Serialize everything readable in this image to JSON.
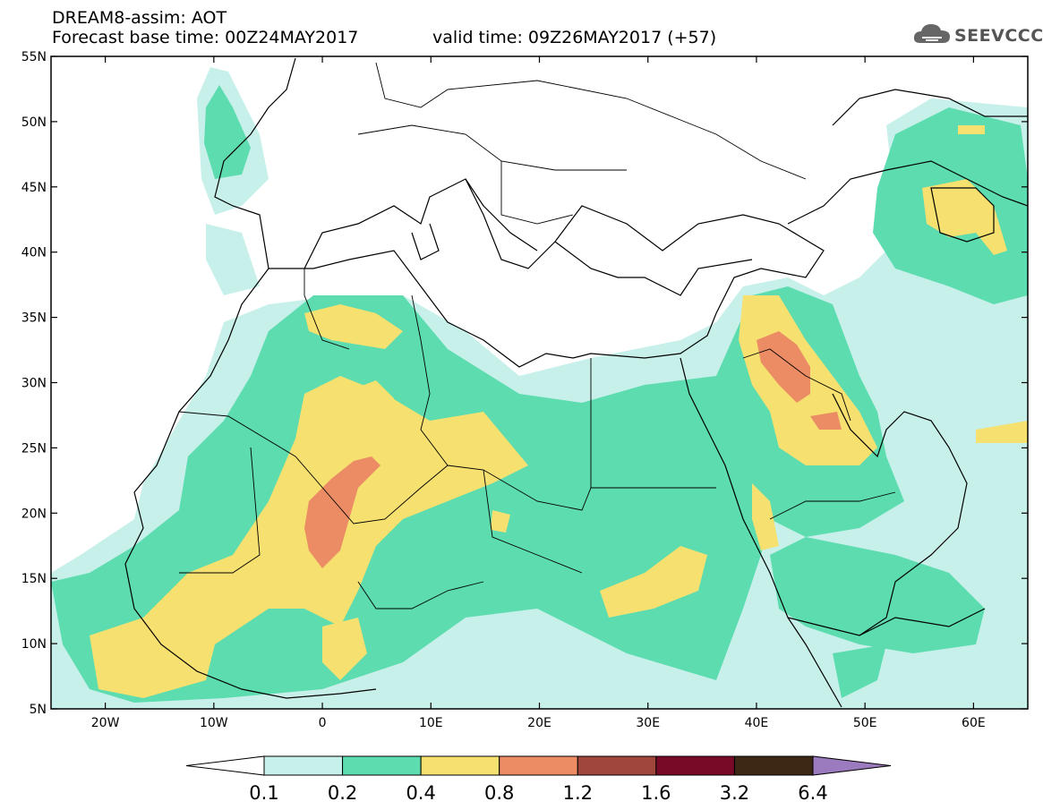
{
  "header": {
    "title_line1": "DREAM8-assim: AOT",
    "title_line2": "Forecast base time: 00Z24MAY2017",
    "valid_time": "valid time: 09Z26MAY2017 (+57)",
    "logo_text": "SEEVCCC",
    "logo_icon": "cloud-icon"
  },
  "map": {
    "lon_range": [
      -25,
      65
    ],
    "lat_range": [
      5,
      55
    ],
    "lat_ticks": [
      {
        "v": 55,
        "label": "55N"
      },
      {
        "v": 50,
        "label": "50N"
      },
      {
        "v": 45,
        "label": "45N"
      },
      {
        "v": 40,
        "label": "40N"
      },
      {
        "v": 35,
        "label": "35N"
      },
      {
        "v": 30,
        "label": "30N"
      },
      {
        "v": 25,
        "label": "25N"
      },
      {
        "v": 20,
        "label": "20N"
      },
      {
        "v": 15,
        "label": "15N"
      },
      {
        "v": 10,
        "label": "10N"
      },
      {
        "v": 5,
        "label": "5N"
      }
    ],
    "lon_ticks": [
      {
        "v": -20,
        "label": "20W"
      },
      {
        "v": -10,
        "label": "10W"
      },
      {
        "v": 0,
        "label": "0"
      },
      {
        "v": 10,
        "label": "10E"
      },
      {
        "v": 20,
        "label": "20E"
      },
      {
        "v": 30,
        "label": "30E"
      },
      {
        "v": 40,
        "label": "40E"
      },
      {
        "v": 50,
        "label": "50E"
      },
      {
        "v": 60,
        "label": "60E"
      }
    ],
    "colors": {
      "c01": "#c8f0ea",
      "c02": "#5ddcb0",
      "c04": "#f5e070",
      "c08": "#eb8c64",
      "c12": "#a0463c",
      "c16": "#780a28",
      "c32": "#3c2814",
      "c64": "#9b7bbd"
    }
  },
  "colorbar": {
    "labels": [
      "0.1",
      "0.2",
      "0.4",
      "0.8",
      "1.2",
      "1.6",
      "3.2",
      "6.4"
    ],
    "colors": [
      "#c8f0ea",
      "#5ddcb0",
      "#f5e070",
      "#eb8c64",
      "#a0463c",
      "#780a28",
      "#3c2814"
    ],
    "low_color": "#ffffff",
    "high_color": "#9b7bbd"
  }
}
